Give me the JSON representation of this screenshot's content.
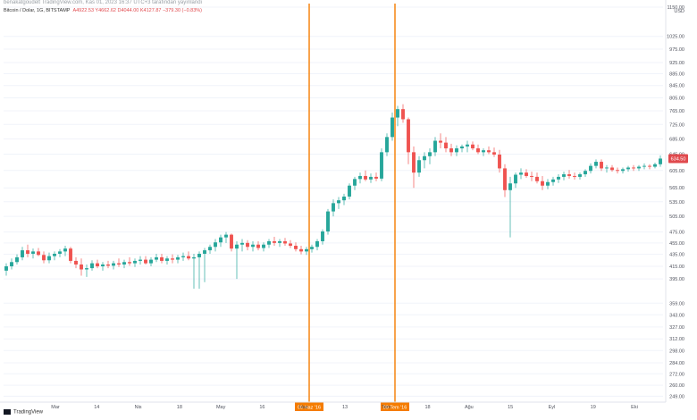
{
  "header": {
    "text": "benakatgoudelt TradingView.com, Kas 01, 2023 16:37 UTC+3 tarafından yayınlandı"
  },
  "info": {
    "symbol": "Bitcoin / Dolar, 1G, BITSTAMP",
    "ohlc": "A4922.53  Y4662.62  D4044.00  K4127.87  −379.30 (−0.83%)"
  },
  "tradingview_label": "TradingView",
  "colors": {
    "up": "#26a69a",
    "down": "#ef5350",
    "marker_line": "#f57c00",
    "marker_label_bg": "#f57c00",
    "current_price_bg": "#e0494d",
    "grid": "#f0f3fa",
    "axis_text": "#50535e"
  },
  "chart_data": {
    "type": "candlestick",
    "title": "Bitcoin / Dolar, 1G, BITSTAMP",
    "currency_label": "USD",
    "y_scale": "log",
    "ylim": [
      245,
      1150
    ],
    "y_ticks": [
      1150,
      1025,
      975,
      925,
      885,
      845,
      805,
      765,
      725,
      685,
      645,
      605,
      565,
      535,
      505,
      475,
      455,
      435,
      415,
      395,
      359,
      343,
      327,
      312,
      298,
      284,
      272,
      260,
      249
    ],
    "x_ticks": [
      "Mar",
      "14",
      "Nis",
      "18",
      "May",
      "16",
      "Haz",
      "13",
      "Tem",
      "18",
      "Ağu",
      "15",
      "Eyl",
      "19",
      "Eki"
    ],
    "markers": [
      {
        "label": "06 Haz '16"
      },
      {
        "label": "09 Tem '16"
      }
    ],
    "current_price_label": "634.50",
    "candles": [
      [
        408,
        420,
        400,
        415
      ],
      [
        415,
        428,
        410,
        422
      ],
      [
        422,
        435,
        418,
        430
      ],
      [
        430,
        448,
        425,
        442
      ],
      [
        442,
        452,
        430,
        436
      ],
      [
        436,
        445,
        428,
        440
      ],
      [
        440,
        446,
        432,
        434
      ],
      [
        434,
        440,
        420,
        425
      ],
      [
        425,
        438,
        420,
        432
      ],
      [
        432,
        440,
        425,
        436
      ],
      [
        436,
        444,
        430,
        440
      ],
      [
        440,
        450,
        432,
        445
      ],
      [
        445,
        448,
        420,
        424
      ],
      [
        424,
        430,
        412,
        418
      ],
      [
        418,
        428,
        400,
        410
      ],
      [
        410,
        418,
        398,
        412
      ],
      [
        412,
        425,
        408,
        420
      ],
      [
        420,
        426,
        412,
        415
      ],
      [
        415,
        422,
        408,
        418
      ],
      [
        418,
        424,
        412,
        416
      ],
      [
        416,
        424,
        410,
        420
      ],
      [
        420,
        428,
        414,
        418
      ],
      [
        418,
        426,
        412,
        422
      ],
      [
        422,
        430,
        416,
        420
      ],
      [
        420,
        428,
        414,
        424
      ],
      [
        424,
        432,
        418,
        426
      ],
      [
        426,
        432,
        418,
        420
      ],
      [
        420,
        430,
        415,
        426
      ],
      [
        426,
        436,
        422,
        430
      ],
      [
        430,
        436,
        420,
        424
      ],
      [
        424,
        432,
        418,
        428
      ],
      [
        428,
        435,
        420,
        426
      ],
      [
        426,
        434,
        420,
        430
      ],
      [
        430,
        438,
        424,
        432
      ],
      [
        432,
        440,
        425,
        428
      ],
      [
        428,
        436,
        380,
        430
      ],
      [
        430,
        440,
        380,
        436
      ],
      [
        436,
        446,
        390,
        442
      ],
      [
        442,
        452,
        436,
        448
      ],
      [
        448,
        462,
        440,
        456
      ],
      [
        456,
        470,
        448,
        465
      ],
      [
        465,
        475,
        455,
        470
      ],
      [
        470,
        472,
        440,
        445
      ],
      [
        445,
        458,
        395,
        452
      ],
      [
        452,
        462,
        440,
        455
      ],
      [
        455,
        460,
        442,
        448
      ],
      [
        448,
        458,
        440,
        452
      ],
      [
        452,
        458,
        442,
        446
      ],
      [
        446,
        456,
        440,
        452
      ],
      [
        452,
        462,
        446,
        458
      ],
      [
        458,
        466,
        450,
        455
      ],
      [
        455,
        462,
        448,
        458
      ],
      [
        458,
        464,
        450,
        454
      ],
      [
        454,
        460,
        446,
        450
      ],
      [
        450,
        456,
        440,
        444
      ],
      [
        444,
        450,
        435,
        440
      ],
      [
        440,
        448,
        434,
        444
      ],
      [
        444,
        452,
        438,
        448
      ],
      [
        448,
        462,
        442,
        458
      ],
      [
        458,
        480,
        452,
        476
      ],
      [
        476,
        520,
        470,
        515
      ],
      [
        515,
        540,
        505,
        532
      ],
      [
        532,
        545,
        520,
        538
      ],
      [
        538,
        552,
        528,
        546
      ],
      [
        546,
        575,
        540,
        570
      ],
      [
        570,
        590,
        560,
        585
      ],
      [
        585,
        600,
        575,
        592
      ],
      [
        592,
        605,
        580,
        584
      ],
      [
        584,
        598,
        576,
        590
      ],
      [
        590,
        600,
        580,
        586
      ],
      [
        586,
        660,
        580,
        650
      ],
      [
        650,
        700,
        640,
        690
      ],
      [
        690,
        760,
        680,
        745
      ],
      [
        745,
        780,
        720,
        770
      ],
      [
        770,
        785,
        730,
        740
      ],
      [
        740,
        745,
        620,
        650
      ],
      [
        650,
        665,
        565,
        600
      ],
      [
        600,
        640,
        590,
        630
      ],
      [
        630,
        650,
        610,
        640
      ],
      [
        640,
        660,
        620,
        650
      ],
      [
        650,
        690,
        640,
        680
      ],
      [
        680,
        700,
        660,
        675
      ],
      [
        675,
        690,
        650,
        660
      ],
      [
        660,
        672,
        640,
        650
      ],
      [
        650,
        668,
        640,
        660
      ],
      [
        660,
        670,
        650,
        665
      ],
      [
        665,
        680,
        650,
        670
      ],
      [
        670,
        678,
        655,
        660
      ],
      [
        660,
        670,
        645,
        650
      ],
      [
        650,
        660,
        640,
        655
      ],
      [
        655,
        665,
        645,
        650
      ],
      [
        650,
        662,
        638,
        644
      ],
      [
        644,
        656,
        600,
        610
      ],
      [
        610,
        620,
        545,
        560
      ],
      [
        560,
        590,
        465,
        575
      ],
      [
        575,
        600,
        565,
        595
      ],
      [
        595,
        610,
        585,
        600
      ],
      [
        600,
        608,
        588,
        592
      ],
      [
        592,
        602,
        580,
        590
      ],
      [
        590,
        600,
        575,
        580
      ],
      [
        580,
        592,
        560,
        570
      ],
      [
        570,
        585,
        562,
        578
      ],
      [
        578,
        590,
        570,
        584
      ],
      [
        584,
        596,
        576,
        590
      ],
      [
        590,
        602,
        582,
        596
      ],
      [
        596,
        606,
        586,
        592
      ],
      [
        592,
        600,
        584,
        590
      ],
      [
        590,
        600,
        584,
        596
      ],
      [
        596,
        608,
        590,
        604
      ],
      [
        604,
        622,
        598,
        616
      ],
      [
        616,
        632,
        610,
        626
      ],
      [
        626,
        632,
        604,
        610
      ],
      [
        610,
        618,
        600,
        612
      ],
      [
        612,
        618,
        602,
        606
      ],
      [
        606,
        612,
        598,
        604
      ],
      [
        604,
        612,
        598,
        608
      ],
      [
        608,
        616,
        602,
        612
      ],
      [
        612,
        618,
        604,
        610
      ],
      [
        610,
        618,
        604,
        614
      ],
      [
        614,
        622,
        608,
        616
      ],
      [
        616,
        620,
        608,
        614
      ],
      [
        614,
        624,
        610,
        620
      ],
      [
        620,
        642,
        614,
        634
      ]
    ]
  }
}
